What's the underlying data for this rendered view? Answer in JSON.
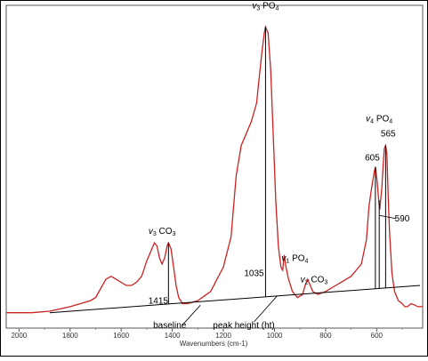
{
  "chart_data": {
    "type": "line",
    "xlabel": "Wavenumbers (cm-1)",
    "ylabel": "",
    "xlim": [
      2050,
      420
    ],
    "ylim": [
      0,
      1.0
    ],
    "x_reversed": true,
    "grid": false,
    "x_ticks": [
      {
        "value": 2000,
        "label": "2000"
      },
      {
        "value": 1800,
        "label": "1800"
      },
      {
        "value": 1600,
        "label": "1600"
      },
      {
        "value": 1400,
        "label": "1400"
      },
      {
        "value": 1200,
        "label": "1200"
      },
      {
        "value": 1000,
        "label": "1000"
      },
      {
        "value": 800,
        "label": "800"
      },
      {
        "value": 600,
        "label": "600"
      }
    ],
    "series": [
      {
        "color": "#cc2222",
        "x": [
          2050,
          1950,
          1880,
          1800,
          1760,
          1720,
          1700,
          1680,
          1660,
          1640,
          1620,
          1600,
          1580,
          1560,
          1540,
          1520,
          1500,
          1480,
          1470,
          1460,
          1450,
          1440,
          1430,
          1420,
          1415,
          1405,
          1395,
          1385,
          1375,
          1360,
          1340,
          1300,
          1250,
          1200,
          1170,
          1150,
          1130,
          1110,
          1090,
          1070,
          1060,
          1050,
          1040,
          1035,
          1025,
          1015,
          1005,
          995,
          985,
          975,
          968,
          962,
          955,
          945,
          930,
          910,
          890,
          880,
          870,
          860,
          850,
          830,
          800,
          760,
          700,
          660,
          640,
          630,
          620,
          610,
          605,
          598,
          592,
          588,
          580,
          575,
          570,
          565,
          560,
          555,
          550,
          540,
          530,
          515,
          500,
          490,
          480,
          465,
          450,
          440,
          430,
          420
        ],
        "y": [
          0.03,
          0.03,
          0.035,
          0.05,
          0.06,
          0.07,
          0.08,
          0.11,
          0.14,
          0.15,
          0.14,
          0.13,
          0.12,
          0.12,
          0.13,
          0.15,
          0.2,
          0.24,
          0.26,
          0.25,
          0.21,
          0.19,
          0.21,
          0.25,
          0.26,
          0.24,
          0.18,
          0.12,
          0.08,
          0.06,
          0.06,
          0.07,
          0.1,
          0.18,
          0.28,
          0.48,
          0.58,
          0.62,
          0.66,
          0.72,
          0.8,
          0.88,
          0.95,
          0.97,
          0.95,
          0.83,
          0.62,
          0.4,
          0.25,
          0.18,
          0.17,
          0.22,
          0.18,
          0.14,
          0.1,
          0.08,
          0.09,
          0.12,
          0.14,
          0.12,
          0.1,
          0.09,
          0.1,
          0.12,
          0.15,
          0.19,
          0.27,
          0.38,
          0.44,
          0.49,
          0.51,
          0.46,
          0.4,
          0.37,
          0.44,
          0.51,
          0.57,
          0.58,
          0.55,
          0.42,
          0.3,
          0.16,
          0.1,
          0.07,
          0.06,
          0.05,
          0.05,
          0.06,
          0.055,
          0.05,
          0.05,
          0.05
        ]
      },
      {
        "color": "#000000",
        "x": [
          1880,
          430
        ],
        "y": [
          0.03,
          0.12
        ]
      }
    ],
    "peak_lines": [
      {
        "x": 1415,
        "top": 0.26
      },
      {
        "x": 1035,
        "top": 0.97
      },
      {
        "x": 605,
        "top": 0.51
      },
      {
        "x": 590,
        "top": 0.4
      },
      {
        "x": 565,
        "top": 0.58
      }
    ],
    "annotations": {
      "v3_co3": {
        "symbol": "v",
        "sub": "3",
        "text": " CO",
        "sub2": "3",
        "x": 1440,
        "y": 0.29
      },
      "v3_po4": {
        "symbol": "v",
        "sub": "3",
        "text": " PO",
        "sub2": "4",
        "x": 1035,
        "y": 1.03
      },
      "v1_po4": {
        "symbol": "v",
        "sub": "1",
        "text": " PO",
        "sub2": "4",
        "x": 920,
        "y": 0.2
      },
      "v2_co3": {
        "symbol": "v",
        "sub": "2",
        "text": " CO",
        "sub2": "3",
        "x": 845,
        "y": 0.13
      },
      "v4_po4": {
        "symbol": "v",
        "sub": "4",
        "text": " PO",
        "sub2": "4",
        "x": 590,
        "y": 0.66
      },
      "n1415": {
        "text": "1415",
        "x": 1455,
        "y": 0.06
      },
      "n1035": {
        "text": "1035",
        "x": 1080,
        "y": 0.15
      },
      "n605": {
        "text": "605",
        "x": 617,
        "y": 0.53
      },
      "n565": {
        "text": "565",
        "x": 555,
        "y": 0.61
      },
      "n590": {
        "text": "590",
        "x": 500,
        "y": 0.33
      },
      "baseline": {
        "text": "baseline",
        "x": 1410,
        "y": -0.02
      },
      "peak_height": {
        "text": "peak height (ht)",
        "x": 1120,
        "y": -0.02
      }
    }
  }
}
